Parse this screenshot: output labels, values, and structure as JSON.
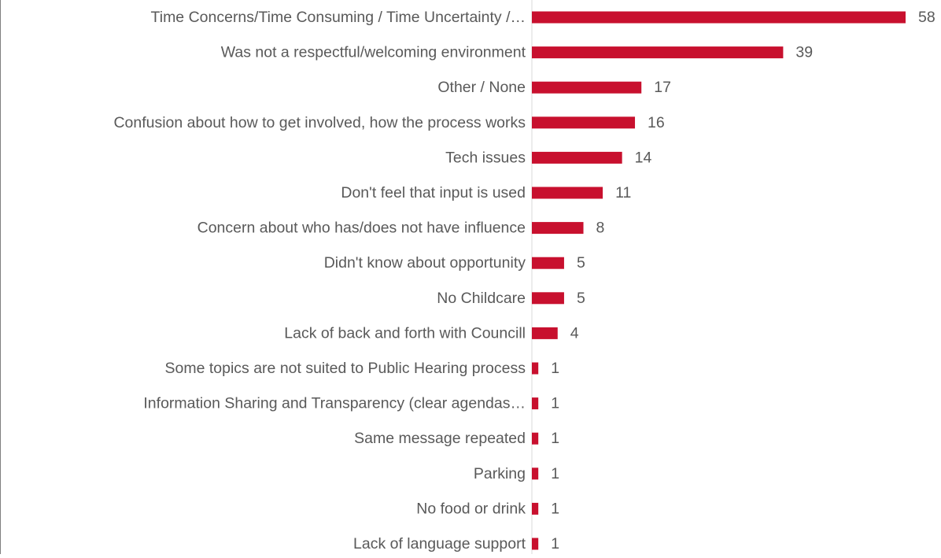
{
  "chart_data": {
    "type": "bar",
    "orientation": "horizontal",
    "categories": [
      "Time Concerns/Time Consuming / Time Uncertainty /…",
      "Was not a respectful/welcoming environment",
      "Other / None",
      "Confusion about how to get involved, how the process works",
      "Tech issues",
      "Don't feel that input is used",
      "Concern about who has/does not have influence",
      "Didn't know about opportunity",
      "No Childcare",
      "Lack of back and forth with Councill",
      "Some topics are not suited to Public Hearing process",
      "Information Sharing and Transparency (clear agendas…",
      "Same message repeated",
      "Parking",
      "No food or drink",
      "Lack of language support"
    ],
    "values": [
      58,
      39,
      17,
      16,
      14,
      11,
      8,
      5,
      5,
      4,
      1,
      1,
      1,
      1,
      1,
      1
    ],
    "xlim": [
      0,
      58
    ],
    "grid": false,
    "legend": "none",
    "colors": {
      "bar": "#c8102e",
      "label": "#595959",
      "axis": "#d9d9d9",
      "frame": "#7f7f7f"
    }
  }
}
